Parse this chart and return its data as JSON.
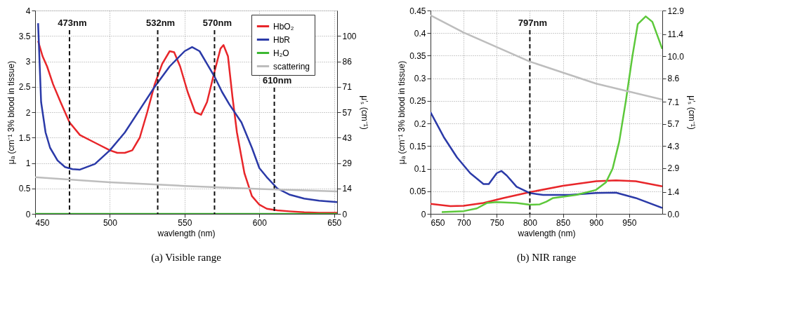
{
  "chart_data": [
    {
      "type": "line",
      "title": "(a) Visible range",
      "xlabel": "wavlength (nm)",
      "ylabel": "μₐ (cm⁻¹ 3% blood in tissue)",
      "y2label": "μ′ₛ (cm⁻¹)",
      "xlim": [
        450,
        652
      ],
      "xticks": [
        450,
        500,
        550,
        600,
        650
      ],
      "ylim": [
        0,
        4
      ],
      "yticks": [
        0,
        0.5,
        1,
        1.5,
        2,
        2.5,
        3,
        3.5,
        4
      ],
      "y2lim": [
        0,
        114.29
      ],
      "y2ticks": [
        {
          "value": 0,
          "label": "0"
        },
        {
          "value": 14.29,
          "label": "14"
        },
        {
          "value": 28.57,
          "label": "29"
        },
        {
          "value": 42.86,
          "label": "43"
        },
        {
          "value": 57.14,
          "label": "57"
        },
        {
          "value": 71.43,
          "label": "71"
        },
        {
          "value": 85.71,
          "label": "86"
        },
        {
          "value": 100,
          "label": "100"
        }
      ],
      "grid": true,
      "legend": "top right",
      "line_style": "solid",
      "marker": "none",
      "series": [
        {
          "name": "HbO₂",
          "color": "#e8262a",
          "x": [
            452,
            455,
            458,
            462,
            467,
            473,
            480,
            490,
            500,
            505,
            510,
            515,
            520,
            525,
            530,
            535,
            540,
            543,
            547,
            552,
            557,
            561,
            565,
            570,
            574,
            576,
            579,
            582,
            585,
            590,
            595,
            600,
            605,
            612,
            620,
            630,
            640,
            652
          ],
          "values": [
            3.4,
            3.1,
            2.9,
            2.55,
            2.2,
            1.8,
            1.55,
            1.4,
            1.25,
            1.2,
            1.2,
            1.25,
            1.5,
            2.0,
            2.55,
            2.95,
            3.2,
            3.18,
            2.9,
            2.4,
            2.0,
            1.95,
            2.2,
            2.8,
            3.25,
            3.32,
            3.1,
            2.3,
            1.6,
            0.8,
            0.35,
            0.18,
            0.1,
            0.07,
            0.05,
            0.03,
            0.02,
            0.02
          ]
        },
        {
          "name": "HbR",
          "color": "#2b3aa8",
          "x": [
            452,
            454,
            457,
            460,
            465,
            470,
            475,
            480,
            490,
            500,
            510,
            520,
            530,
            540,
            550,
            555,
            560,
            565,
            570,
            575,
            580,
            588,
            595,
            600,
            605,
            612,
            620,
            630,
            640,
            652
          ],
          "values": [
            3.75,
            2.2,
            1.6,
            1.3,
            1.05,
            0.92,
            0.88,
            0.87,
            0.98,
            1.25,
            1.6,
            2.05,
            2.5,
            2.9,
            3.2,
            3.28,
            3.2,
            2.95,
            2.7,
            2.4,
            2.15,
            1.8,
            1.3,
            0.9,
            0.72,
            0.5,
            0.38,
            0.3,
            0.26,
            0.23
          ]
        },
        {
          "name": "H₂O",
          "color": "#3cb832",
          "x": [
            450,
            652
          ],
          "values": [
            0,
            0
          ]
        },
        {
          "name": "scattering",
          "color": "#bdbdbd",
          "axis": "y2",
          "x": [
            450,
            500,
            550,
            600,
            652
          ],
          "values": [
            20.6,
            17.7,
            15.7,
            14.0,
            12.6
          ]
        }
      ],
      "ref_lines": [
        {
          "axis": "x",
          "value": 473,
          "label": "473nm",
          "line_style": "dashed"
        },
        {
          "axis": "x",
          "value": 532,
          "label": "532nm",
          "line_style": "dashed"
        },
        {
          "axis": "x",
          "value": 570,
          "label": "570nm",
          "line_style": "dashed"
        },
        {
          "axis": "x",
          "value": 610,
          "label": "610nm",
          "line_style": "dashed"
        }
      ]
    },
    {
      "type": "line",
      "title": "(b) NIR range",
      "xlabel": "wavlength (nm)",
      "ylabel": "μₐ (cm⁻¹ 3% blood in tissue)",
      "y2label": "μ′ₛ (cm⁻¹)",
      "xlim": [
        650,
        1000
      ],
      "xticks": [
        650,
        700,
        750,
        800,
        850,
        900,
        950
      ],
      "ylim": [
        0,
        0.45
      ],
      "yticks": [
        0,
        0.05,
        0.1,
        0.15,
        0.2,
        0.25,
        0.3,
        0.35,
        0.4,
        0.45
      ],
      "y2lim": [
        0,
        12.9
      ],
      "y2ticks": [
        {
          "value": 0,
          "label": "0.0"
        },
        {
          "value": 1.4,
          "label": "1.4"
        },
        {
          "value": 2.9,
          "label": "2.9"
        },
        {
          "value": 4.3,
          "label": "4.3"
        },
        {
          "value": 5.7,
          "label": "5.7"
        },
        {
          "value": 7.1,
          "label": "7.1"
        },
        {
          "value": 8.6,
          "label": "8.6"
        },
        {
          "value": 10.0,
          "label": "10.0"
        },
        {
          "value": 11.4,
          "label": "11.4"
        },
        {
          "value": 12.9,
          "label": "12.9"
        }
      ],
      "grid": true,
      "line_style": "solid",
      "marker": "none",
      "series": [
        {
          "color": "#e8262a",
          "x": [
            650,
            680,
            700,
            730,
            760,
            800,
            850,
            900,
            930,
            960,
            1000
          ],
          "values": [
            0.022,
            0.017,
            0.018,
            0.024,
            0.035,
            0.048,
            0.062,
            0.072,
            0.074,
            0.072,
            0.061
          ]
        },
        {
          "color": "#2b3aa8",
          "x": [
            650,
            670,
            690,
            710,
            730,
            738,
            750,
            757,
            765,
            780,
            800,
            820,
            860,
            900,
            930,
            960,
            1000
          ],
          "values": [
            0.225,
            0.17,
            0.125,
            0.09,
            0.066,
            0.066,
            0.09,
            0.095,
            0.085,
            0.06,
            0.046,
            0.042,
            0.042,
            0.046,
            0.047,
            0.035,
            0.013
          ]
        },
        {
          "color": "#5cc83a",
          "x": [
            667,
            700,
            720,
            735,
            750,
            780,
            800,
            815,
            825,
            835,
            870,
            900,
            915,
            925,
            935,
            945,
            955,
            963,
            975,
            985,
            995,
            1000
          ],
          "values": [
            0.004,
            0.006,
            0.012,
            0.024,
            0.026,
            0.024,
            0.02,
            0.021,
            0.027,
            0.035,
            0.042,
            0.053,
            0.07,
            0.1,
            0.16,
            0.25,
            0.35,
            0.42,
            0.437,
            0.425,
            0.385,
            0.365
          ]
        },
        {
          "color": "#bdbdbd",
          "axis": "y2",
          "x": [
            650,
            700,
            800,
            900,
            1000
          ],
          "values": [
            12.6,
            11.5,
            9.66,
            8.26,
            7.25
          ]
        }
      ],
      "ref_lines": [
        {
          "axis": "x",
          "value": 800,
          "label": "797nm",
          "line_style": "dashed"
        }
      ]
    }
  ]
}
